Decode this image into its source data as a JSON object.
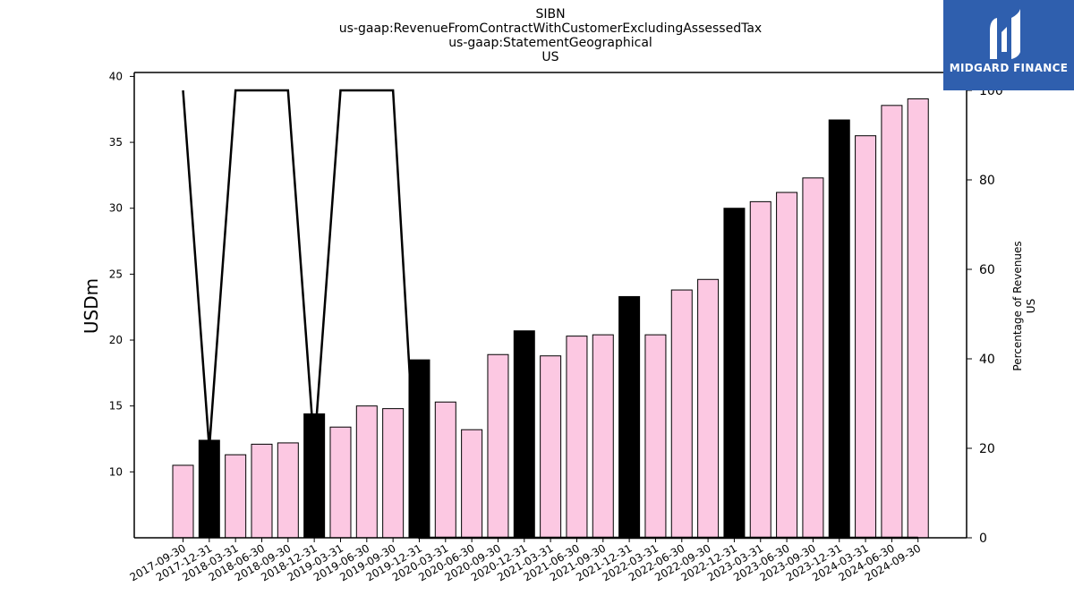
{
  "chart_data": {
    "type": "bar",
    "title_lines": [
      "SIBN",
      "us-gaap:RevenueFromContractWithCustomerExcludingAssessedTax",
      "us-gaap:StatementGeographical",
      "US"
    ],
    "ylabel": "USDm",
    "y2label_lines": [
      "Percentage of Revenues",
      "US"
    ],
    "ylim": [
      5,
      40.3
    ],
    "yticks": [
      10,
      15,
      20,
      25,
      30,
      35,
      40
    ],
    "y2lim": [
      0,
      104
    ],
    "y2ticks": [
      0,
      20,
      40,
      60,
      80,
      100
    ],
    "categories": [
      "2017-09-30",
      "2017-12-31",
      "2018-03-31",
      "2018-06-30",
      "2018-09-30",
      "2018-12-31",
      "2019-03-31",
      "2019-06-30",
      "2019-09-30",
      "2019-12-31",
      "2020-03-31",
      "2020-06-30",
      "2020-09-30",
      "2020-12-31",
      "2021-03-31",
      "2021-06-30",
      "2021-09-30",
      "2021-12-31",
      "2022-03-31",
      "2022-06-30",
      "2022-09-30",
      "2022-12-31",
      "2023-03-31",
      "2023-06-30",
      "2023-09-30",
      "2023-12-31",
      "2024-03-31",
      "2024-06-30",
      "2024-09-30"
    ],
    "values": [
      10.5,
      12.4,
      11.3,
      12.1,
      12.2,
      14.4,
      13.4,
      15.0,
      14.8,
      18.5,
      15.3,
      13.2,
      18.9,
      20.7,
      18.8,
      20.3,
      20.4,
      23.3,
      20.4,
      23.8,
      24.6,
      30.0,
      30.5,
      31.2,
      32.3,
      36.7,
      35.5,
      37.8,
      38.3
    ],
    "annual": [
      false,
      true,
      false,
      false,
      false,
      true,
      false,
      false,
      false,
      true,
      false,
      false,
      false,
      true,
      false,
      false,
      false,
      true,
      false,
      false,
      false,
      true,
      false,
      false,
      false,
      true,
      false,
      false,
      false
    ],
    "line_series": [
      100,
      20,
      100,
      100,
      100,
      20,
      100,
      100,
      100,
      0,
      0,
      0,
      0,
      0,
      0,
      0,
      0,
      0,
      0,
      0,
      0,
      0,
      0,
      0,
      0,
      0,
      0,
      0,
      0
    ],
    "colors": {
      "quarter_bar": "#fcc8e2",
      "annual_bar": "#000000",
      "line": "#000000"
    },
    "grid": false
  },
  "logo": {
    "text": "MIDGARD FINANCE",
    "bg": "#2f5fae"
  }
}
